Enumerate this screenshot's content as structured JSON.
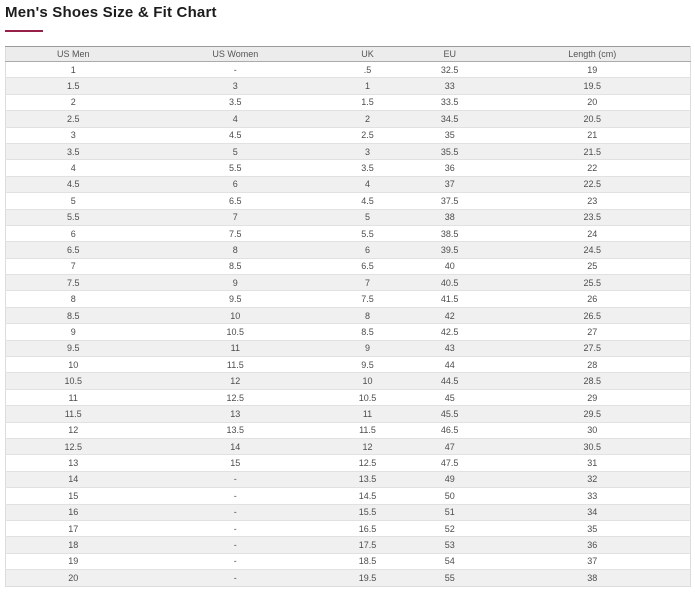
{
  "page": {
    "title": "Men's Shoes Size & Fit Chart"
  },
  "colors": {
    "accent_underline": "#962048",
    "header_bg": "#ececec",
    "row_alt_bg": "#f0f0f0",
    "row_border": "#e1e1e1",
    "header_bottom_border": "#ababab",
    "table_top_border": "#9a9a9a",
    "cell_text": "#4d4d4d",
    "title_text": "#1c1c1c"
  },
  "chart_data": {
    "type": "table",
    "title": "Men's Shoes Size & Fit Chart",
    "columns": [
      "US Men",
      "US Women",
      "UK",
      "EU",
      "Length (cm)"
    ],
    "rows": [
      [
        "1",
        "-",
        ".5",
        "32.5",
        "19"
      ],
      [
        "1.5",
        "3",
        "1",
        "33",
        "19.5"
      ],
      [
        "2",
        "3.5",
        "1.5",
        "33.5",
        "20"
      ],
      [
        "2.5",
        "4",
        "2",
        "34.5",
        "20.5"
      ],
      [
        "3",
        "4.5",
        "2.5",
        "35",
        "21"
      ],
      [
        "3.5",
        "5",
        "3",
        "35.5",
        "21.5"
      ],
      [
        "4",
        "5.5",
        "3.5",
        "36",
        "22"
      ],
      [
        "4.5",
        "6",
        "4",
        "37",
        "22.5"
      ],
      [
        "5",
        "6.5",
        "4.5",
        "37.5",
        "23"
      ],
      [
        "5.5",
        "7",
        "5",
        "38",
        "23.5"
      ],
      [
        "6",
        "7.5",
        "5.5",
        "38.5",
        "24"
      ],
      [
        "6.5",
        "8",
        "6",
        "39.5",
        "24.5"
      ],
      [
        "7",
        "8.5",
        "6.5",
        "40",
        "25"
      ],
      [
        "7.5",
        "9",
        "7",
        "40.5",
        "25.5"
      ],
      [
        "8",
        "9.5",
        "7.5",
        "41.5",
        "26"
      ],
      [
        "8.5",
        "10",
        "8",
        "42",
        "26.5"
      ],
      [
        "9",
        "10.5",
        "8.5",
        "42.5",
        "27"
      ],
      [
        "9.5",
        "11",
        "9",
        "43",
        "27.5"
      ],
      [
        "10",
        "11.5",
        "9.5",
        "44",
        "28"
      ],
      [
        "10.5",
        "12",
        "10",
        "44.5",
        "28.5"
      ],
      [
        "11",
        "12.5",
        "10.5",
        "45",
        "29"
      ],
      [
        "11.5",
        "13",
        "11",
        "45.5",
        "29.5"
      ],
      [
        "12",
        "13.5",
        "11.5",
        "46.5",
        "30"
      ],
      [
        "12.5",
        "14",
        "12",
        "47",
        "30.5"
      ],
      [
        "13",
        "15",
        "12.5",
        "47.5",
        "31"
      ],
      [
        "14",
        "-",
        "13.5",
        "49",
        "32"
      ],
      [
        "15",
        "-",
        "14.5",
        "50",
        "33"
      ],
      [
        "16",
        "-",
        "15.5",
        "51",
        "34"
      ],
      [
        "17",
        "-",
        "16.5",
        "52",
        "35"
      ],
      [
        "18",
        "-",
        "17.5",
        "53",
        "36"
      ],
      [
        "19",
        "-",
        "18.5",
        "54",
        "37"
      ],
      [
        "20",
        "-",
        "19.5",
        "55",
        "38"
      ]
    ]
  }
}
